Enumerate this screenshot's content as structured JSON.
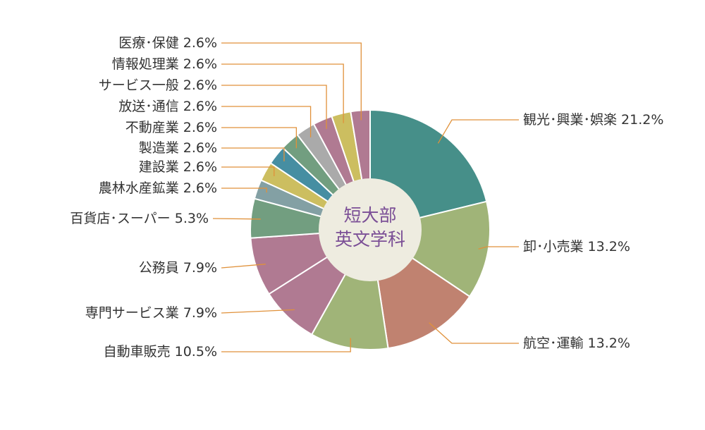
{
  "chart_data": {
    "type": "pie",
    "center_label": [
      "短大部",
      "英文学科"
    ],
    "unit": "%",
    "slices": [
      {
        "name": "観光・興業・娯楽",
        "label": "観光･興業･娯楽 21.2%",
        "value": 21.2,
        "color": "#468f89"
      },
      {
        "name": "卸・小売業",
        "label": "卸･小売業 13.2%",
        "value": 13.2,
        "color": "#a0b478"
      },
      {
        "name": "航空・運輸",
        "label": "航空･運輸 13.2%",
        "value": 13.2,
        "color": "#c08270"
      },
      {
        "name": "自動車販売",
        "label": "自動車販売 10.5%",
        "value": 10.5,
        "color": "#a0b478"
      },
      {
        "name": "専門サービス業",
        "label": "専門サービス業 7.9%",
        "value": 7.9,
        "color": "#b07a92"
      },
      {
        "name": "公務員",
        "label": "公務員 7.9%",
        "value": 7.9,
        "color": "#b07a92"
      },
      {
        "name": "百貨店・スーパー",
        "label": "百貨店･スーパー 5.3%",
        "value": 5.3,
        "color": "#729e80"
      },
      {
        "name": "農林水産鉱業",
        "label": "農林水産鉱業 2.6%",
        "value": 2.6,
        "color": "#83a0a4"
      },
      {
        "name": "建設業",
        "label": "建設業 2.6%",
        "value": 2.6,
        "color": "#ccbe60"
      },
      {
        "name": "製造業",
        "label": "製造業 2.6%",
        "value": 2.6,
        "color": "#468ea2"
      },
      {
        "name": "不動産業",
        "label": "不動産業 2.6%",
        "value": 2.6,
        "color": "#729e80"
      },
      {
        "name": "放送・通信",
        "label": "放送･通信 2.6%",
        "value": 2.6,
        "color": "#aaaaaa"
      },
      {
        "name": "サービス一般",
        "label": "サービス一般 2.6%",
        "value": 2.6,
        "color": "#b07a92"
      },
      {
        "name": "情報処理業",
        "label": "情報処理業 2.6%",
        "value": 2.6,
        "color": "#ccbe60"
      },
      {
        "name": "医療・保健",
        "label": "医療･保健 2.6%",
        "value": 2.6,
        "color": "#b07a92"
      }
    ],
    "leader_line_color": "#e0913a",
    "center_fill": "#eeece0"
  }
}
